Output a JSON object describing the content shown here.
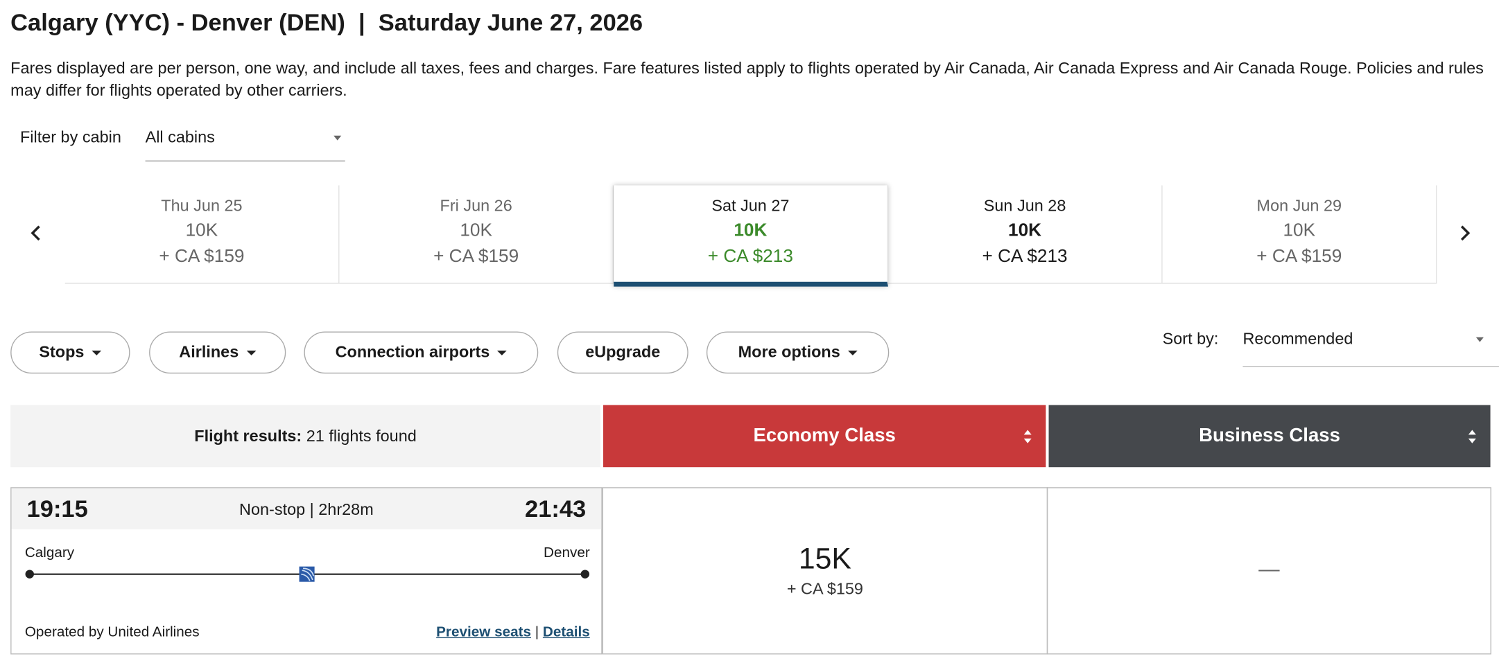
{
  "header": {
    "title": "Calgary (YYC) - Denver (DEN)  |  Saturday June 27, 2026",
    "notice": "Fares displayed are per person, one way, and include all taxes, fees and charges. Fare features listed apply to flights operated by Air Canada, Air Canada Express and Air Canada Rouge. Policies and rules may differ for flights operated by other carriers."
  },
  "filter": {
    "label": "Filter by cabin",
    "value": "All cabins"
  },
  "dates": [
    {
      "day": "Thu Jun 25",
      "miles": "10K",
      "cash": "+ CA $159"
    },
    {
      "day": "Fri Jun 26",
      "miles": "10K",
      "cash": "+ CA $159"
    },
    {
      "day": "Sat Jun 27",
      "miles": "10K",
      "cash": "+ CA $213"
    },
    {
      "day": "Sun Jun 28",
      "miles": "10K",
      "cash": "+ CA $213"
    },
    {
      "day": "Mon Jun 29",
      "miles": "10K",
      "cash": "+ CA $159"
    }
  ],
  "filters": [
    "Stops",
    "Airlines",
    "Connection airports",
    "eUpgrade",
    "More options"
  ],
  "sort": {
    "label": "Sort by:",
    "value": "Recommended"
  },
  "results": {
    "label": "Flight results:",
    "count": "21 flights found"
  },
  "cabins": [
    "Economy Class",
    "Business Class"
  ],
  "flight": {
    "depart": "19:15",
    "summary": "Non-stop | 2hr28m",
    "arrive": "21:43",
    "origin": "Calgary",
    "destination": "Denver",
    "operator": "Operated by United Airlines",
    "links": [
      "Preview seats",
      "Details"
    ],
    "link_separator": "|",
    "economy": {
      "miles": "15K",
      "cash": "+ CA $159"
    },
    "business": "—"
  }
}
